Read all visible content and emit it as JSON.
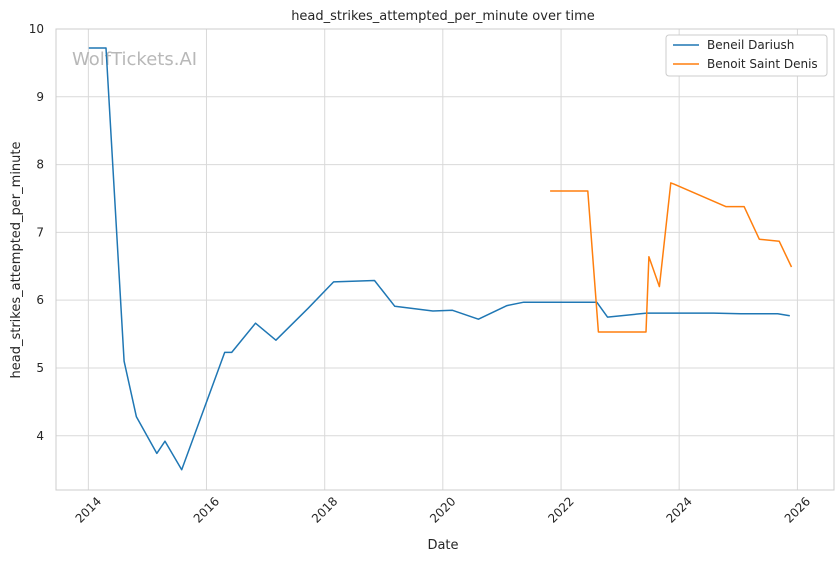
{
  "chart_data": {
    "type": "line",
    "title": "head_strikes_attempted_per_minute over time",
    "xlabel": "Date",
    "ylabel": "head_strikes_attempted_per_minute",
    "watermark": "WolfTickets.AI",
    "x_ticks": [
      "2014",
      "2016",
      "2018",
      "2020",
      "2022",
      "2024",
      "2026"
    ],
    "y_ticks": [
      "4",
      "5",
      "6",
      "7",
      "8",
      "9",
      "10"
    ],
    "xlim": [
      "2013-06-15",
      "2026-08-15"
    ],
    "ylim": [
      3.2,
      10.0
    ],
    "grid": true,
    "legend_position": "top-right",
    "series": [
      {
        "name": "Beneil Dariush",
        "color": "#1f77b4",
        "points": [
          [
            "2014-01-04",
            9.72
          ],
          [
            "2014-04-20",
            9.72
          ],
          [
            "2014-08-10",
            5.1
          ],
          [
            "2014-10-25",
            4.28
          ],
          [
            "2015-02-28",
            3.74
          ],
          [
            "2015-04-20",
            3.92
          ],
          [
            "2015-08-01",
            3.5
          ],
          [
            "2016-04-23",
            5.23
          ],
          [
            "2016-06-05",
            5.23
          ],
          [
            "2016-10-30",
            5.66
          ],
          [
            "2017-03-05",
            5.41
          ],
          [
            "2017-09-20",
            5.88
          ],
          [
            "2018-02-25",
            6.27
          ],
          [
            "2018-11-05",
            6.29
          ],
          [
            "2019-03-10",
            5.91
          ],
          [
            "2019-11-01",
            5.84
          ],
          [
            "2020-03-01",
            5.85
          ],
          [
            "2020-08-08",
            5.72
          ],
          [
            "2021-02-01",
            5.92
          ],
          [
            "2021-05-15",
            5.97
          ],
          [
            "2022-08-10",
            5.97
          ],
          [
            "2022-10-15",
            5.75
          ],
          [
            "2023-06-15",
            5.81
          ],
          [
            "2024-08-01",
            5.81
          ],
          [
            "2025-01-15",
            5.8
          ],
          [
            "2025-09-01",
            5.8
          ],
          [
            "2025-11-15",
            5.77
          ]
        ]
      },
      {
        "name": "Benoit Saint Denis",
        "color": "#ff7f0e",
        "points": [
          [
            "2021-10-25",
            7.61
          ],
          [
            "2022-06-15",
            7.61
          ],
          [
            "2022-08-20",
            5.53
          ],
          [
            "2023-06-10",
            5.53
          ],
          [
            "2023-06-28",
            6.64
          ],
          [
            "2023-09-01",
            6.2
          ],
          [
            "2023-11-10",
            7.73
          ],
          [
            "2023-12-01",
            7.71
          ],
          [
            "2024-10-15",
            7.38
          ],
          [
            "2025-02-05",
            7.38
          ],
          [
            "2025-05-10",
            6.9
          ],
          [
            "2025-09-10",
            6.87
          ],
          [
            "2025-11-25",
            6.49
          ]
        ]
      }
    ]
  }
}
